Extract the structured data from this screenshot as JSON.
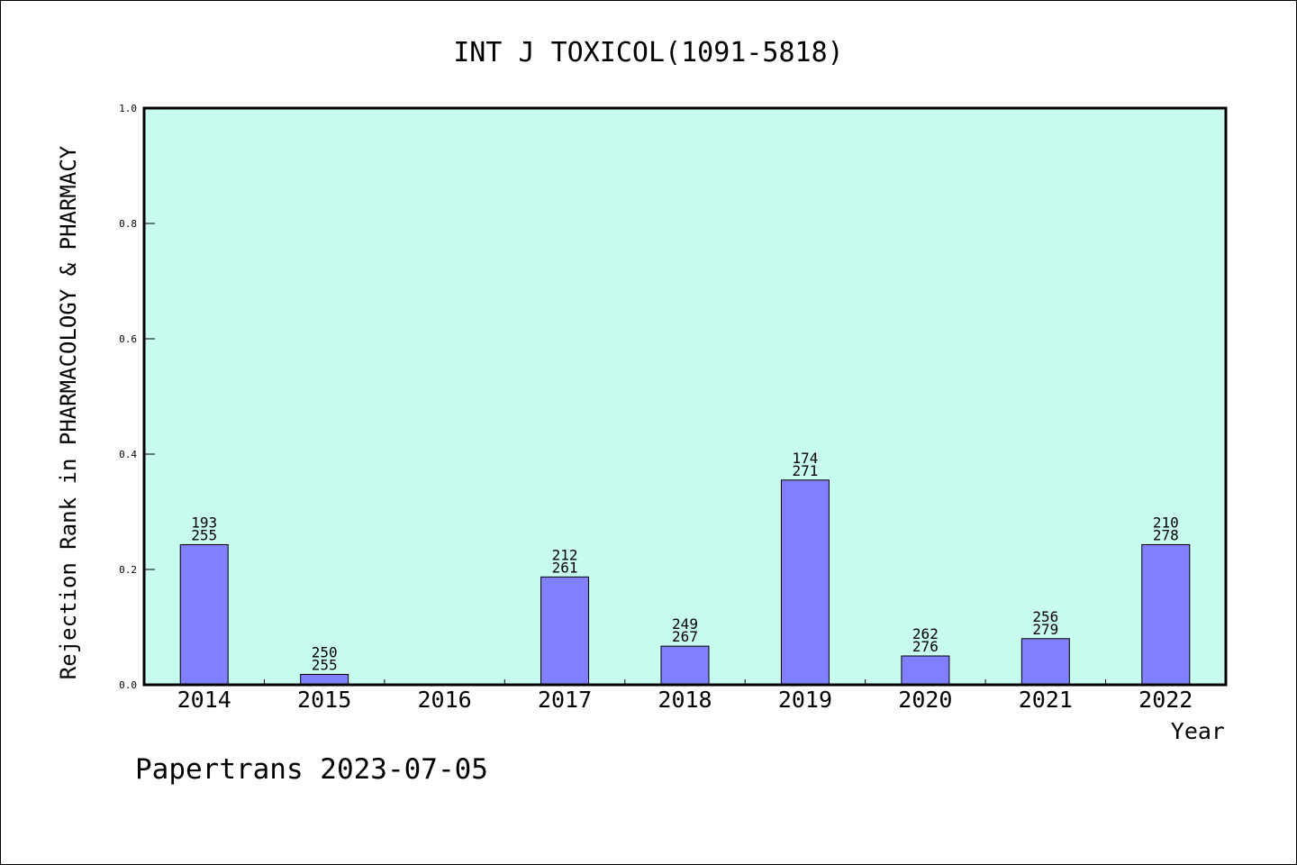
{
  "chart_data": {
    "type": "bar",
    "title": "INT J TOXICOL(1091-5818)",
    "xlabel": "Year",
    "ylabel": "Rejection Rank in PHARMACOLOGY & PHARMACY",
    "footer": "Papertrans 2023-07-05",
    "categories": [
      "2014",
      "2015",
      "2016",
      "2017",
      "2018",
      "2019",
      "2020",
      "2021",
      "2022"
    ],
    "values": [
      0.243,
      0.018,
      null,
      0.187,
      0.067,
      0.355,
      0.05,
      0.08,
      0.243
    ],
    "bar_labels": [
      [
        "193",
        "255"
      ],
      [
        "250",
        "255"
      ],
      null,
      [
        "212",
        "261"
      ],
      [
        "249",
        "267"
      ],
      [
        "174",
        "271"
      ],
      [
        "262",
        "276"
      ],
      [
        "256",
        "279"
      ],
      [
        "210",
        "278"
      ]
    ],
    "ylim": [
      0,
      1.0
    ],
    "yticks": [
      "0.0",
      "0.2",
      "0.4",
      "0.6",
      "0.8",
      "1.0"
    ],
    "colors": {
      "plot_background": "#c8fcee",
      "bar_fill": "#8080ff",
      "bar_stroke": "#000000",
      "axis": "#000000"
    },
    "grid": false,
    "legend": "none"
  }
}
